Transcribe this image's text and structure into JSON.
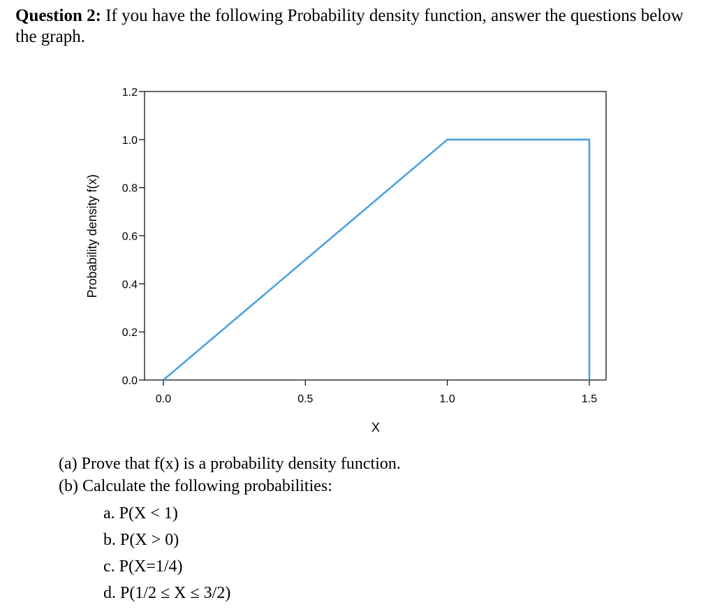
{
  "question": {
    "label": "Question 2:",
    "text": " If you have the following Probability density function, answer the questions below the graph."
  },
  "chart_data": {
    "type": "line",
    "xlabel": "X",
    "ylabel": "Probability density f(x)",
    "xlim": [
      0,
      1.5
    ],
    "ylim": [
      0,
      1.2
    ],
    "x_ticks": [
      "0.0",
      "0.5",
      "1.0",
      "1.5"
    ],
    "y_ticks": [
      "0.0",
      "0.2",
      "0.4",
      "0.6",
      "0.8",
      "1.0",
      "1.2"
    ],
    "grid": false,
    "series": [
      {
        "color": "#4ba3e2",
        "x": [
          0,
          1.0,
          1.5,
          1.5
        ],
        "y": [
          0,
          1.0,
          1.0,
          0
        ]
      }
    ]
  },
  "parts": {
    "a": "(a) Prove that f(x) is a probability density function.",
    "b": "(b) Calculate the following probabilities:",
    "items": [
      "a. P(X < 1)",
      "b. P(X > 0)",
      "c. P(X=1/4)",
      "d. P(1/2 ≤ X ≤ 3/2)"
    ]
  }
}
